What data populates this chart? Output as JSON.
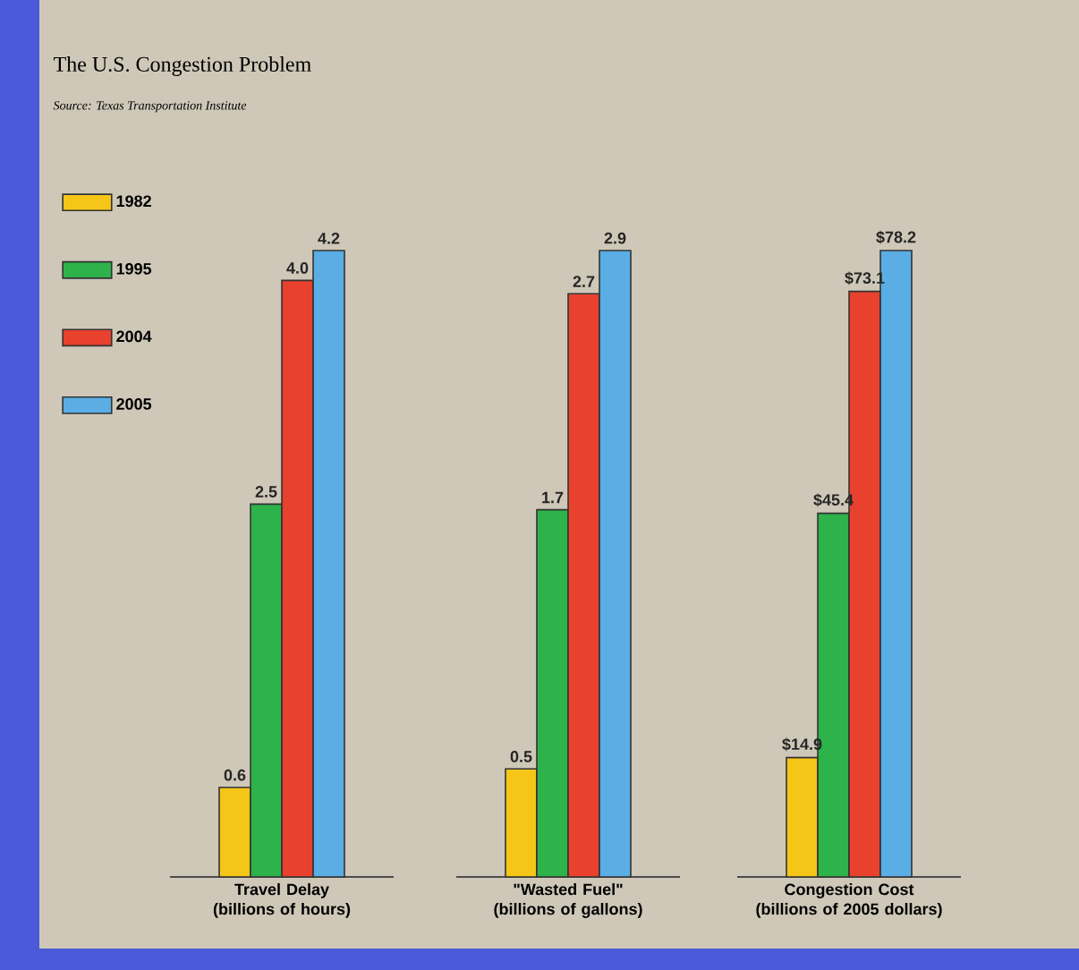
{
  "chart_data": [
    {
      "type": "bar",
      "title": "The U.S. Congestion Problem",
      "subtitle": "Source: Texas Transportation Institute",
      "legend": "left",
      "categories": [
        "Travel Delay (billions of hours)"
      ],
      "series": [
        {
          "name": "1982",
          "color": "#f5c518",
          "values": [
            0.6
          ],
          "value_labels": [
            "0.6"
          ]
        },
        {
          "name": "1995",
          "color": "#2db34a",
          "values": [
            2.5
          ],
          "value_labels": [
            "2.5"
          ]
        },
        {
          "name": "2004",
          "color": "#e8412e",
          "values": [
            4.0
          ],
          "value_labels": [
            "4.0"
          ]
        },
        {
          "name": "2005",
          "color": "#5aaee4",
          "values": [
            4.2
          ],
          "value_labels": [
            "4.2"
          ]
        }
      ]
    },
    {
      "type": "bar",
      "categories": [
        "\"Wasted Fuel\" (billions of gallons)"
      ],
      "series": [
        {
          "color": "#f5c518",
          "values": [
            0.5
          ],
          "value_labels": [
            "0.5"
          ]
        },
        {
          "color": "#2db34a",
          "values": [
            1.7
          ],
          "value_labels": [
            "1.7"
          ]
        },
        {
          "color": "#e8412e",
          "values": [
            2.7
          ],
          "value_labels": [
            "2.7"
          ]
        },
        {
          "color": "#5aaee4",
          "values": [
            2.9
          ],
          "value_labels": [
            "2.9"
          ]
        }
      ]
    },
    {
      "type": "bar",
      "categories": [
        "Congestion Cost (billions of 2005 dollars)"
      ],
      "series": [
        {
          "color": "#f5c518",
          "values": [
            14.9
          ],
          "value_labels": [
            "$14.9"
          ]
        },
        {
          "color": "#2db34a",
          "values": [
            45.4
          ],
          "value_labels": [
            "$45.4"
          ]
        },
        {
          "color": "#e8412e",
          "values": [
            73.1
          ],
          "value_labels": [
            "$73.1"
          ]
        },
        {
          "color": "#5aaee4",
          "values": [
            78.2
          ],
          "value_labels": [
            "$78.2"
          ]
        }
      ]
    }
  ]
}
